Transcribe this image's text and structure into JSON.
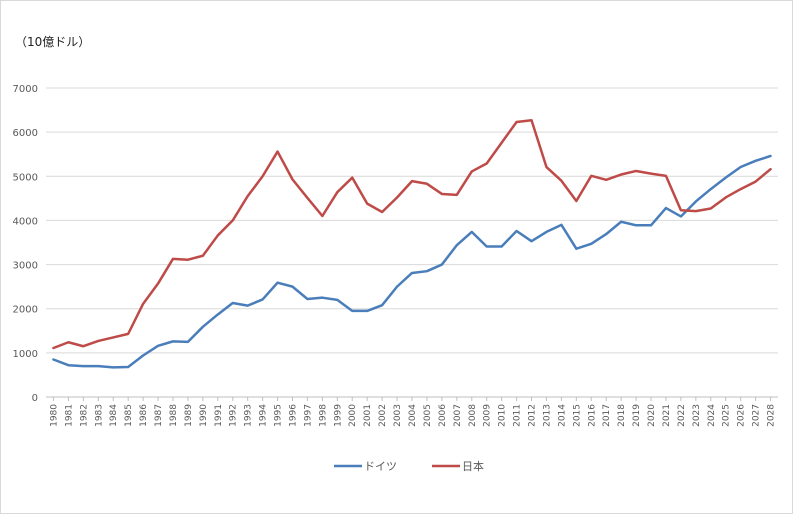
{
  "chart_data": {
    "type": "line",
    "unit_label": "（10億ドル）",
    "title": "",
    "xlabel": "",
    "ylabel": "",
    "ylim": [
      0,
      7000
    ],
    "y_ticks": [
      "0",
      "1000",
      "2000",
      "3000",
      "4000",
      "5000",
      "6000",
      "7000"
    ],
    "grid": "horizontal",
    "legend_position": "bottom",
    "x": [
      "1980",
      "1981",
      "1982",
      "1983",
      "1984",
      "1985",
      "1986",
      "1987",
      "1988",
      "1989",
      "1990",
      "1991",
      "1992",
      "1993",
      "1994",
      "1995",
      "1996",
      "1997",
      "1998",
      "1999",
      "2000",
      "2001",
      "2002",
      "2003",
      "2004",
      "2005",
      "2006",
      "2007",
      "2008",
      "2009",
      "2010",
      "2011",
      "2012",
      "2013",
      "2014",
      "2015",
      "2016",
      "2017",
      "2018",
      "2019",
      "2020",
      "2021",
      "2022",
      "2023",
      "2024",
      "2025",
      "2026",
      "2027",
      "2028"
    ],
    "series": [
      {
        "name": "ドイツ",
        "color": "#4a7ebb",
        "values": [
          850,
          720,
          700,
          700,
          670,
          680,
          940,
          1160,
          1260,
          1250,
          1590,
          1870,
          2130,
          2070,
          2210,
          2590,
          2500,
          2220,
          2250,
          2200,
          1950,
          1950,
          2080,
          2500,
          2810,
          2850,
          3000,
          3440,
          3740,
          3410,
          3410,
          3760,
          3530,
          3740,
          3900,
          3360,
          3470,
          3690,
          3970,
          3890,
          3890,
          4280,
          4090,
          4430,
          4710,
          4970,
          5210,
          5350,
          5460
        ]
      },
      {
        "name": "日本",
        "color": "#be4b48",
        "values": [
          1110,
          1240,
          1150,
          1270,
          1350,
          1430,
          2110,
          2570,
          3130,
          3110,
          3200,
          3660,
          4000,
          4550,
          5000,
          5560,
          4930,
          4510,
          4100,
          4640,
          4970,
          4380,
          4190,
          4520,
          4890,
          4830,
          4600,
          4580,
          5110,
          5290,
          5760,
          6230,
          6270,
          5210,
          4900,
          4440,
          5010,
          4920,
          5040,
          5120,
          5060,
          5010,
          4230,
          4210,
          4270,
          4520,
          4710,
          4880,
          5160
        ]
      }
    ]
  }
}
